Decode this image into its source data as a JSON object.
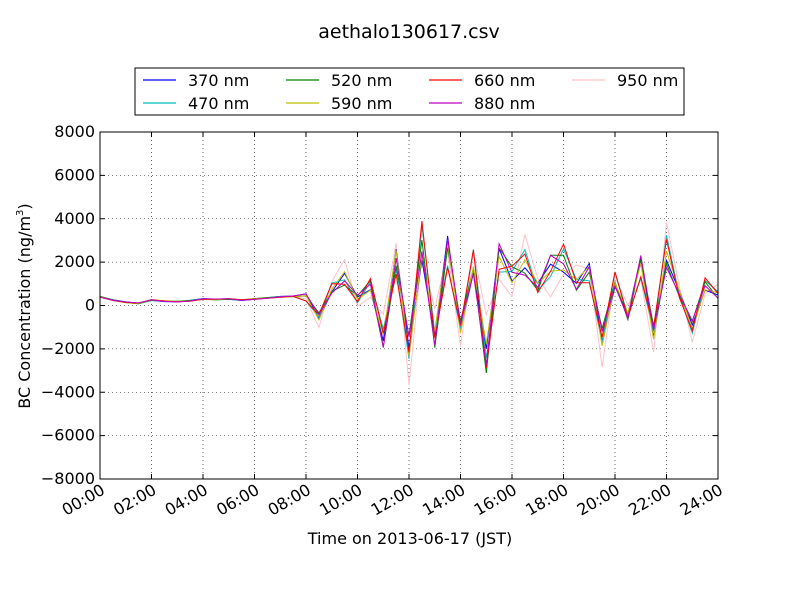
{
  "chart_data": {
    "type": "line",
    "title": "aethalo130617.csv",
    "xlabel": "Time on 2013-06-17 (JST)",
    "ylabel_main": "BC Concentration (ng/m",
    "ylabel_sup": "3",
    "ylabel_tail": ")",
    "xlim": [
      "00:00",
      "24:00"
    ],
    "ylim": [
      -8000,
      8000
    ],
    "grid": true,
    "grid_style": "dotted",
    "legend_position": "top-center",
    "x_ticks": [
      "00:00",
      "02:00",
      "04:00",
      "06:00",
      "08:00",
      "10:00",
      "12:00",
      "14:00",
      "16:00",
      "18:00",
      "20:00",
      "22:00",
      "24:00"
    ],
    "y_ticks": [
      "8000",
      "6000",
      "4000",
      "2000",
      "0",
      "−2000",
      "−4000",
      "−6000",
      "−8000"
    ],
    "series": [
      {
        "name": "370 nm",
        "color": "#0000ff"
      },
      {
        "name": "470 nm",
        "color": "#00bfbf"
      },
      {
        "name": "520 nm",
        "color": "#008000"
      },
      {
        "name": "590 nm",
        "color": "#bfbf00"
      },
      {
        "name": "660 nm",
        "color": "#ff0000"
      },
      {
        "name": "880 nm",
        "color": "#bf00bf"
      },
      {
        "name": "950 nm",
        "color": "#ffc0cb"
      }
    ],
    "x": [
      "00:00",
      "00:30",
      "01:00",
      "01:30",
      "02:00",
      "02:30",
      "03:00",
      "03:30",
      "04:00",
      "04:30",
      "05:00",
      "05:30",
      "06:00",
      "06:30",
      "07:00",
      "07:30",
      "08:00",
      "08:30",
      "09:00",
      "09:30",
      "10:00",
      "10:30",
      "11:00",
      "11:30",
      "12:00",
      "12:30",
      "13:00",
      "13:30",
      "14:00",
      "14:30",
      "15:00",
      "15:30",
      "16:00",
      "16:30",
      "17:00",
      "17:30",
      "18:00",
      "18:30",
      "19:00",
      "19:30",
      "20:00",
      "20:30",
      "21:00",
      "21:30",
      "22:00",
      "22:30",
      "23:00",
      "23:30",
      "24:00"
    ],
    "y": [
      400,
      250,
      150,
      100,
      250,
      200,
      180,
      220,
      300,
      280,
      300,
      250,
      300,
      350,
      400,
      420,
      380,
      -500,
      800,
      1200,
      300,
      1000,
      -1500,
      2000,
      -2000,
      3000,
      -1500,
      2500,
      -1000,
      2000,
      -2500,
      2200,
      1500,
      2000,
      800,
      1800,
      2200,
      1000,
      1500,
      -1500,
      1200,
      -500,
      1800,
      -1200,
      2500,
      500,
      -1000,
      1000,
      500
    ]
  }
}
